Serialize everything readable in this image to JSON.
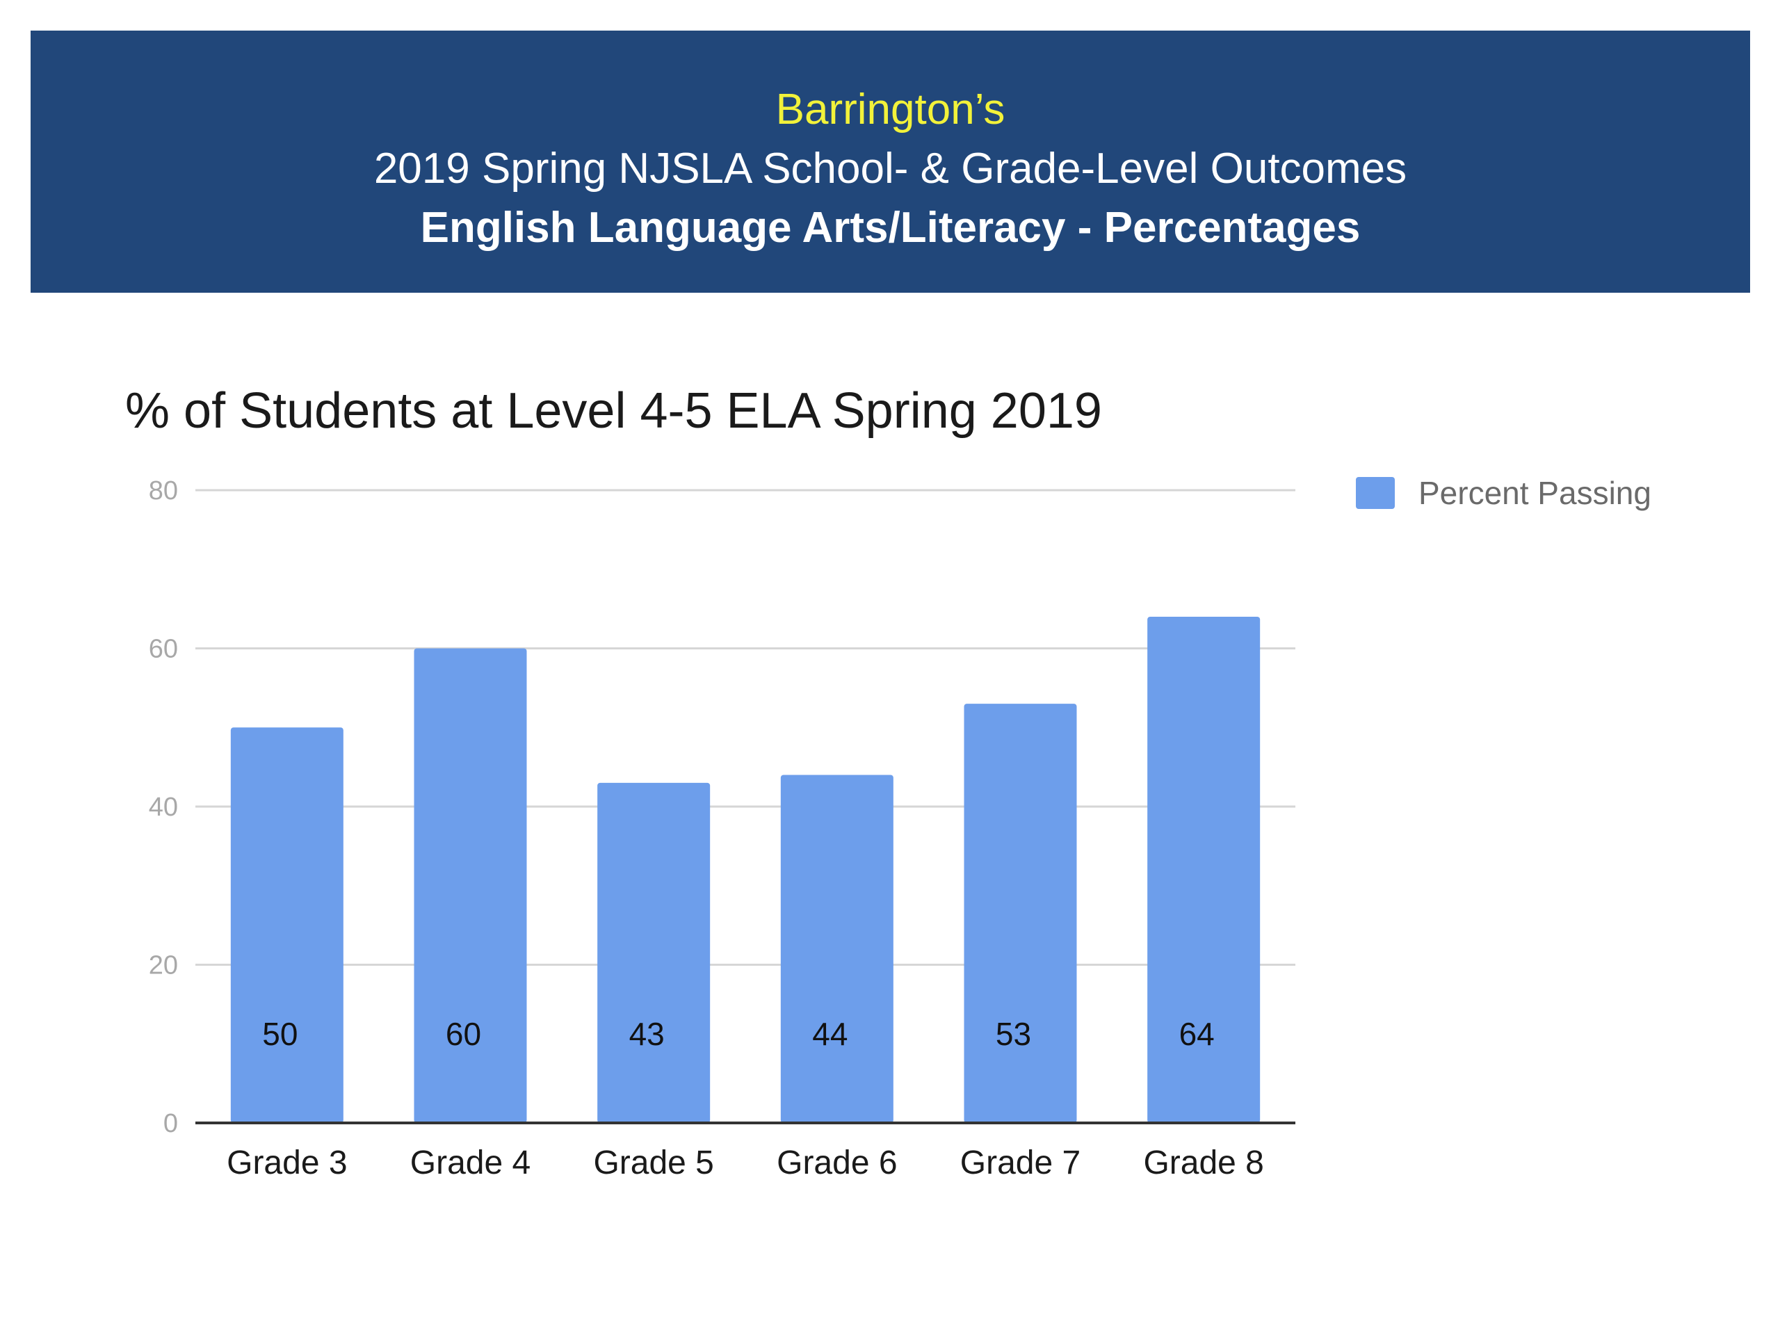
{
  "banner": {
    "line1": "Barrington’s",
    "line2": "2019 Spring NJSLA School- & Grade-Level Outcomes",
    "line3": "English Language Arts/Literacy - Percentages",
    "background_color": "#21477a",
    "line1_color": "#f2f23a",
    "text_color": "#ffffff"
  },
  "chart_data": {
    "type": "bar",
    "title": "% of Students at Level 4-5 ELA Spring 2019",
    "xlabel": "",
    "ylabel": "",
    "categories": [
      "Grade 3",
      "Grade 4",
      "Grade 5",
      "Grade 6",
      "Grade 7",
      "Grade 8"
    ],
    "series": [
      {
        "name": "Percent Passing",
        "values": [
          50,
          60,
          43,
          44,
          53,
          64
        ],
        "color": "#6d9eeb"
      }
    ],
    "ylim": [
      0,
      80
    ],
    "yticks": [
      0,
      20,
      40,
      60,
      80
    ],
    "data_labels": [
      "50",
      "60",
      "43",
      "44",
      "53",
      "64"
    ],
    "grid": true,
    "legend_position": "right"
  }
}
